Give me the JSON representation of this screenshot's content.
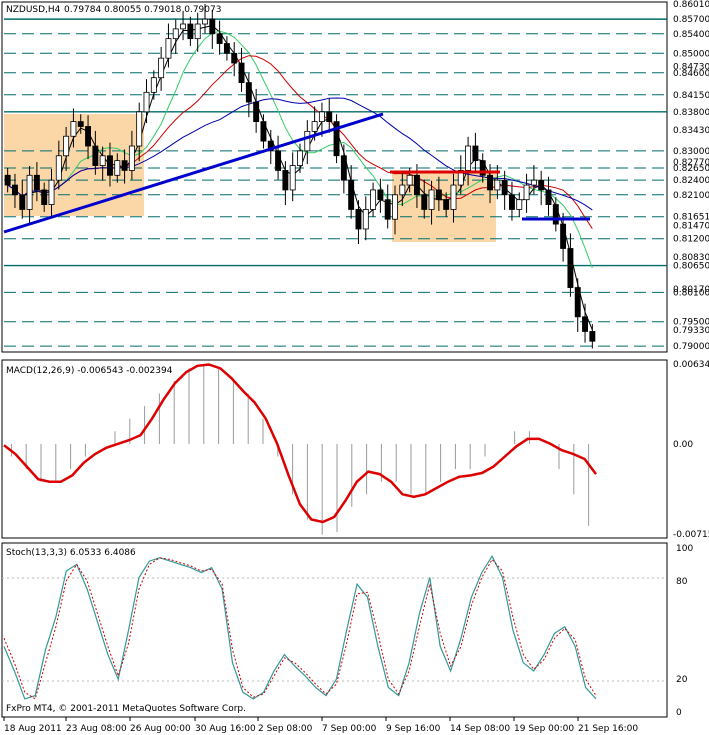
{
  "header": {
    "symbol": "NZDUSD,H4",
    "ohlc": "0.79784 0.80055 0.79018 0.79073"
  },
  "footer": {
    "copyright": "FxPro MT4, © 2001-2011 MetaQuotes Software Corp."
  },
  "colors": {
    "background": "#ffffff",
    "candles": "#000000",
    "support_line": "#0000cc",
    "level_lines": "#006b6b",
    "shade": "#fbd7a8",
    "ma_black": "#000000",
    "ma_green": "#33cc66",
    "ma_red": "#cc0000",
    "ma_blue": "#0000aa",
    "macd_signal": "#dd0000",
    "macd_hist": "#999999",
    "stoch_main": "#339999",
    "stoch_signal": "#cc0000"
  },
  "chart_data": [
    {
      "type": "candlestick",
      "panel": "price",
      "y_labels": [
        "0.86010",
        "0.85700",
        "0.85400",
        "0.85000",
        "0.84730",
        "0.84600",
        "0.84150",
        "0.83800",
        "0.83430",
        "0.83000",
        "0.82770",
        "0.82650",
        "0.82400",
        "0.82100",
        "0.81651",
        "0.81470",
        "0.81200",
        "0.80830",
        "0.80650",
        "0.80170",
        "0.80100",
        "0.79500",
        "0.79330",
        "0.79000"
      ],
      "ylim": [
        0.7892,
        0.8601
      ],
      "x_tick_labels": [
        "18 Aug 2011",
        "23 Aug 08:00",
        "26 Aug 00:00",
        "30 Aug 16:00",
        "2 Sep 08:00",
        "7 Sep 00:00",
        "9 Sep 16:00",
        "14 Sep 08:00",
        "19 Sep 00:00",
        "21 Sep 16:00"
      ],
      "horizontal_levels": [
        0.857,
        0.854,
        0.85,
        0.846,
        0.8415,
        0.838,
        0.83,
        0.8265,
        0.824,
        0.821,
        0.81651,
        0.812,
        0.8065,
        0.801,
        0.795,
        0.79
      ],
      "last_price": 0.79073,
      "close_path": [
        0.823,
        0.821,
        0.818,
        0.825,
        0.822,
        0.819,
        0.824,
        0.829,
        0.833,
        0.836,
        0.835,
        0.831,
        0.827,
        0.829,
        0.825,
        0.828,
        0.826,
        0.831,
        0.838,
        0.842,
        0.845,
        0.849,
        0.853,
        0.855,
        0.856,
        0.853,
        0.856,
        0.857,
        0.854,
        0.852,
        0.85,
        0.848,
        0.844,
        0.84,
        0.836,
        0.832,
        0.83,
        0.826,
        0.822,
        0.827,
        0.83,
        0.834,
        0.836,
        0.838,
        0.836,
        0.829,
        0.824,
        0.818,
        0.814,
        0.818,
        0.822,
        0.82,
        0.816,
        0.821,
        0.823,
        0.825,
        0.821,
        0.818,
        0.822,
        0.82,
        0.818,
        0.823,
        0.826,
        0.831,
        0.828,
        0.825,
        0.822,
        0.824,
        0.821,
        0.818,
        0.82,
        0.823,
        0.824,
        0.822,
        0.819,
        0.815,
        0.81,
        0.802,
        0.796,
        0.793,
        0.791
      ]
    },
    {
      "type": "line",
      "panel": "macd",
      "label": "MACD(12,26,9) -0.006543 -0.002394",
      "y_labels": [
        "0.00634",
        "0.00",
        "-0.00715"
      ],
      "ylim": [
        -0.00715,
        0.00634
      ],
      "signal": [
        -0.0001,
        -0.0008,
        -0.0018,
        -0.0028,
        -0.003,
        -0.003,
        -0.0025,
        -0.0015,
        -0.0008,
        -0.0003,
        0.0,
        0.0003,
        0.0007,
        0.002,
        0.0035,
        0.0048,
        0.0057,
        0.0062,
        0.0063,
        0.006,
        0.0052,
        0.0042,
        0.0033,
        0.002,
        0.0,
        -0.0025,
        -0.0048,
        -0.006,
        -0.0062,
        -0.0058,
        -0.0045,
        -0.003,
        -0.0022,
        -0.0024,
        -0.003,
        -0.004,
        -0.0042,
        -0.004,
        -0.0035,
        -0.003,
        -0.0026,
        -0.0025,
        -0.0023,
        -0.0018,
        -0.001,
        -0.0002,
        0.0004,
        0.0004,
        0.0,
        -0.0005,
        -0.0008,
        -0.0012,
        -0.0024
      ],
      "histogram": [
        -0.001,
        -0.002,
        -0.003,
        -0.003,
        -0.002,
        -0.001,
        0.0,
        0.001,
        0.002,
        0.003,
        0.004,
        0.005,
        0.006,
        0.0063,
        0.006,
        0.005,
        0.004,
        0.002,
        -0.001,
        -0.004,
        -0.006,
        -0.0072,
        -0.007,
        -0.005,
        -0.004,
        -0.003,
        -0.003,
        -0.004,
        -0.004,
        -0.003,
        -0.002,
        -0.002,
        -0.001,
        0.0,
        0.001,
        0.001,
        0.0,
        -0.002,
        -0.004,
        -0.0065
      ]
    },
    {
      "type": "line",
      "panel": "stochastic",
      "label": "Stoch(13,3,3) 6.0533 6.4086",
      "y_labels": [
        "100",
        "80",
        "20",
        "0"
      ],
      "ylim": [
        0,
        100
      ],
      "main": [
        40,
        25,
        8,
        10,
        38,
        58,
        86,
        90,
        75,
        55,
        35,
        20,
        50,
        82,
        92,
        94,
        92,
        90,
        88,
        85,
        88,
        75,
        30,
        12,
        8,
        12,
        25,
        35,
        28,
        22,
        15,
        10,
        20,
        50,
        78,
        70,
        40,
        15,
        10,
        30,
        60,
        82,
        40,
        25,
        45,
        70,
        85,
        95,
        82,
        50,
        30,
        25,
        35,
        48,
        52,
        40,
        15,
        8
      ],
      "signal": [
        45,
        30,
        12,
        8,
        30,
        52,
        80,
        90,
        80,
        60,
        40,
        22,
        42,
        75,
        90,
        94,
        93,
        91,
        89,
        86,
        87,
        78,
        38,
        15,
        9,
        11,
        22,
        33,
        30,
        24,
        17,
        11,
        17,
        42,
        72,
        73,
        48,
        20,
        11,
        25,
        52,
        78,
        48,
        28,
        40,
        65,
        82,
        93,
        86,
        58,
        35,
        26,
        32,
        45,
        51,
        44,
        20,
        10
      ]
    }
  ]
}
